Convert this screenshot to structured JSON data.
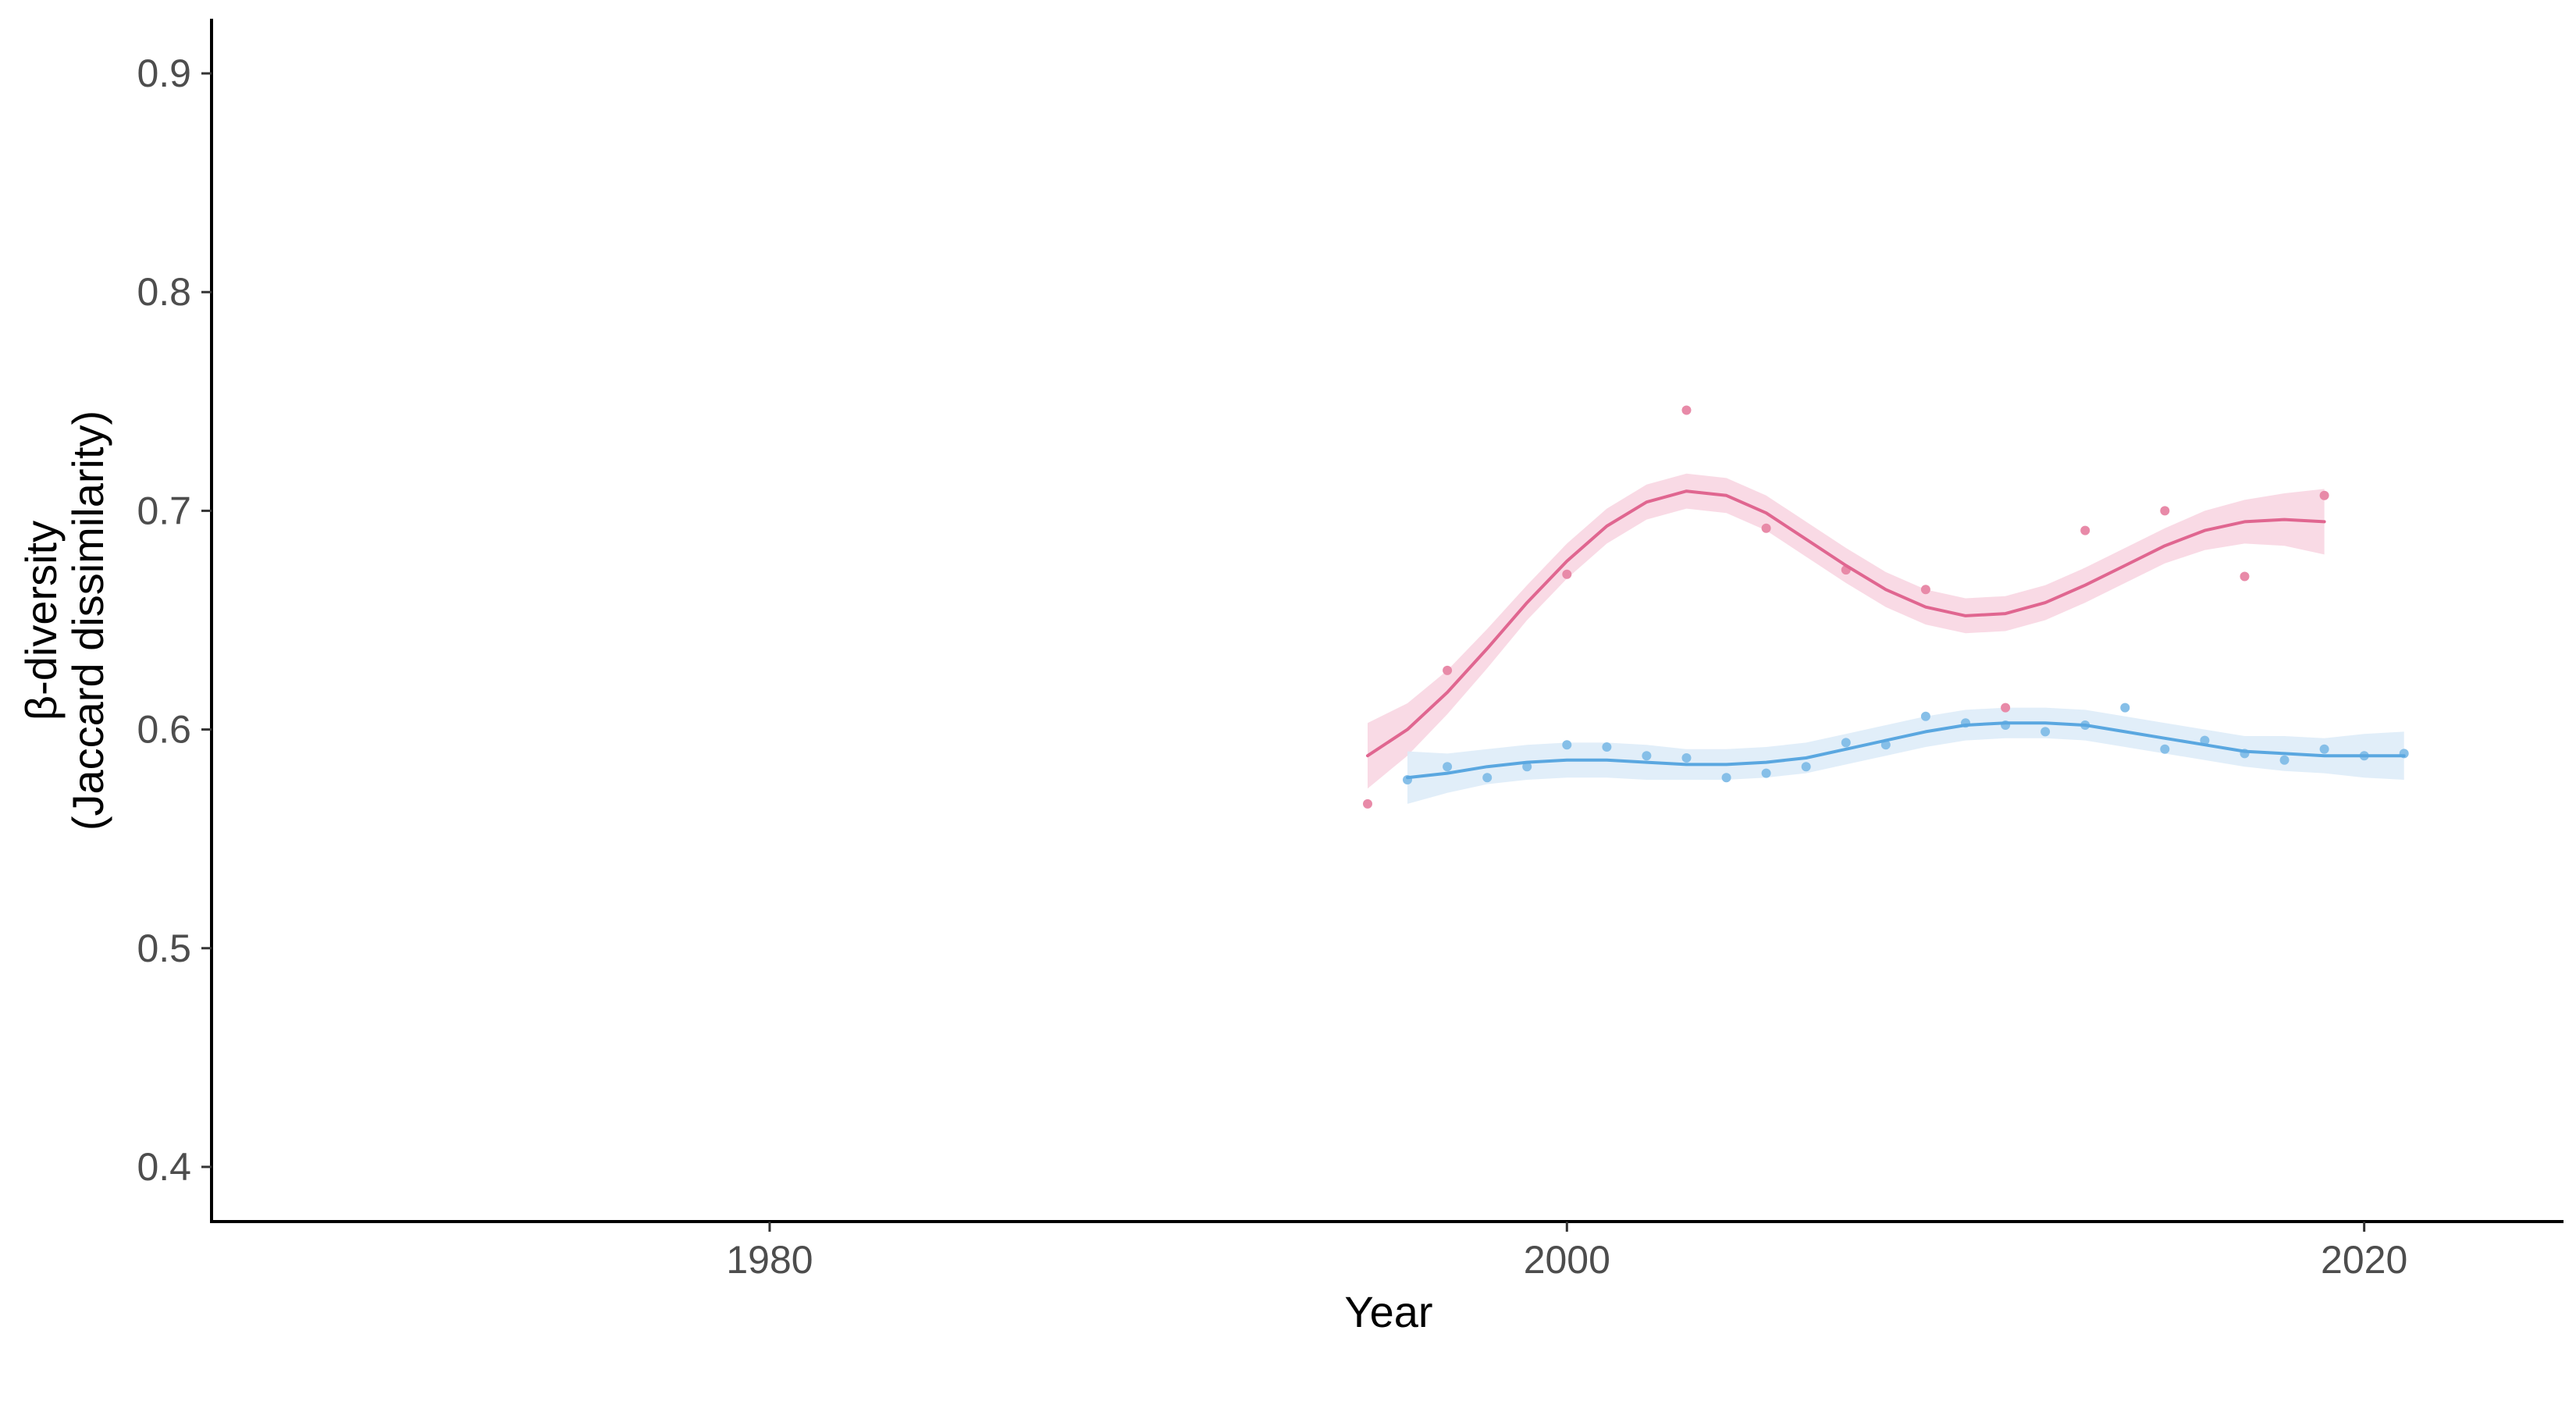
{
  "chart_data": {
    "type": "line",
    "title": "",
    "xlabel": "Year",
    "ylabel_lines": [
      "β-diversity",
      "(Jaccard dissimilarity)"
    ],
    "xlim": [
      1966,
      2025
    ],
    "ylim": [
      0.375,
      0.925
    ],
    "x_ticks": [
      1980,
      2000,
      2020
    ],
    "y_ticks": [
      0.4,
      0.5,
      0.6,
      0.7,
      0.8,
      0.9
    ],
    "y_tick_labels": [
      "0.4",
      "0.5",
      "0.6",
      "0.7",
      "0.8",
      "0.9"
    ],
    "grid": false,
    "legend": "none",
    "series": [
      {
        "color": "#e06690",
        "band_color": "#f8d3e0",
        "point_color": "#e88aa8",
        "points": [
          [
            1995,
            0.566
          ],
          [
            1997,
            0.627
          ],
          [
            2000,
            0.671
          ],
          [
            2003,
            0.746
          ],
          [
            2005,
            0.692
          ],
          [
            2007,
            0.673
          ],
          [
            2009,
            0.664
          ],
          [
            2011,
            0.61
          ],
          [
            2013,
            0.691
          ],
          [
            2015,
            0.7
          ],
          [
            2017,
            0.67
          ],
          [
            2019,
            0.707
          ]
        ],
        "smooth_x": [
          1995,
          1996,
          1997,
          1998,
          1999,
          2000,
          2001,
          2002,
          2003,
          2004,
          2005,
          2006,
          2007,
          2008,
          2009,
          2010,
          2011,
          2012,
          2013,
          2014,
          2015,
          2016,
          2017,
          2018,
          2019
        ],
        "smooth_y": [
          0.588,
          0.6,
          0.617,
          0.637,
          0.658,
          0.677,
          0.693,
          0.704,
          0.709,
          0.707,
          0.699,
          0.687,
          0.675,
          0.664,
          0.656,
          0.652,
          0.653,
          0.658,
          0.666,
          0.675,
          0.684,
          0.691,
          0.695,
          0.696,
          0.695
        ],
        "band_low": [
          0.573,
          0.588,
          0.607,
          0.628,
          0.65,
          0.669,
          0.685,
          0.696,
          0.701,
          0.699,
          0.691,
          0.679,
          0.667,
          0.656,
          0.648,
          0.644,
          0.645,
          0.65,
          0.658,
          0.667,
          0.676,
          0.682,
          0.685,
          0.684,
          0.68
        ],
        "band_high": [
          0.603,
          0.612,
          0.627,
          0.646,
          0.666,
          0.685,
          0.701,
          0.712,
          0.717,
          0.715,
          0.707,
          0.695,
          0.683,
          0.672,
          0.664,
          0.66,
          0.661,
          0.666,
          0.674,
          0.683,
          0.692,
          0.7,
          0.705,
          0.708,
          0.71
        ]
      },
      {
        "color": "#5aa7e0",
        "band_color": "#dcebf8",
        "point_color": "#86bfe8",
        "points": [
          [
            1996,
            0.577
          ],
          [
            1997,
            0.583
          ],
          [
            1998,
            0.578
          ],
          [
            1999,
            0.583
          ],
          [
            2000,
            0.593
          ],
          [
            2001,
            0.592
          ],
          [
            2002,
            0.588
          ],
          [
            2003,
            0.587
          ],
          [
            2004,
            0.578
          ],
          [
            2005,
            0.58
          ],
          [
            2006,
            0.583
          ],
          [
            2007,
            0.594
          ],
          [
            2008,
            0.593
          ],
          [
            2009,
            0.606
          ],
          [
            2010,
            0.603
          ],
          [
            2011,
            0.602
          ],
          [
            2012,
            0.599
          ],
          [
            2013,
            0.602
          ],
          [
            2014,
            0.61
          ],
          [
            2015,
            0.591
          ],
          [
            2016,
            0.595
          ],
          [
            2017,
            0.589
          ],
          [
            2018,
            0.586
          ],
          [
            2019,
            0.591
          ],
          [
            2020,
            0.588
          ],
          [
            2021,
            0.589
          ]
        ],
        "smooth_x": [
          1996,
          1997,
          1998,
          1999,
          2000,
          2001,
          2002,
          2003,
          2004,
          2005,
          2006,
          2007,
          2008,
          2009,
          2010,
          2011,
          2012,
          2013,
          2014,
          2015,
          2016,
          2017,
          2018,
          2019,
          2020,
          2021
        ],
        "smooth_y": [
          0.578,
          0.58,
          0.583,
          0.585,
          0.586,
          0.586,
          0.585,
          0.584,
          0.584,
          0.585,
          0.587,
          0.591,
          0.595,
          0.599,
          0.602,
          0.603,
          0.603,
          0.602,
          0.599,
          0.596,
          0.593,
          0.59,
          0.589,
          0.588,
          0.588,
          0.588
        ],
        "band_low": [
          0.566,
          0.571,
          0.575,
          0.577,
          0.578,
          0.578,
          0.577,
          0.577,
          0.577,
          0.578,
          0.58,
          0.584,
          0.588,
          0.592,
          0.595,
          0.596,
          0.596,
          0.595,
          0.592,
          0.589,
          0.586,
          0.583,
          0.581,
          0.58,
          0.578,
          0.577
        ],
        "band_high": [
          0.59,
          0.589,
          0.591,
          0.593,
          0.594,
          0.594,
          0.593,
          0.591,
          0.591,
          0.592,
          0.594,
          0.598,
          0.602,
          0.606,
          0.609,
          0.61,
          0.61,
          0.609,
          0.606,
          0.603,
          0.6,
          0.597,
          0.597,
          0.596,
          0.598,
          0.599
        ]
      }
    ]
  }
}
